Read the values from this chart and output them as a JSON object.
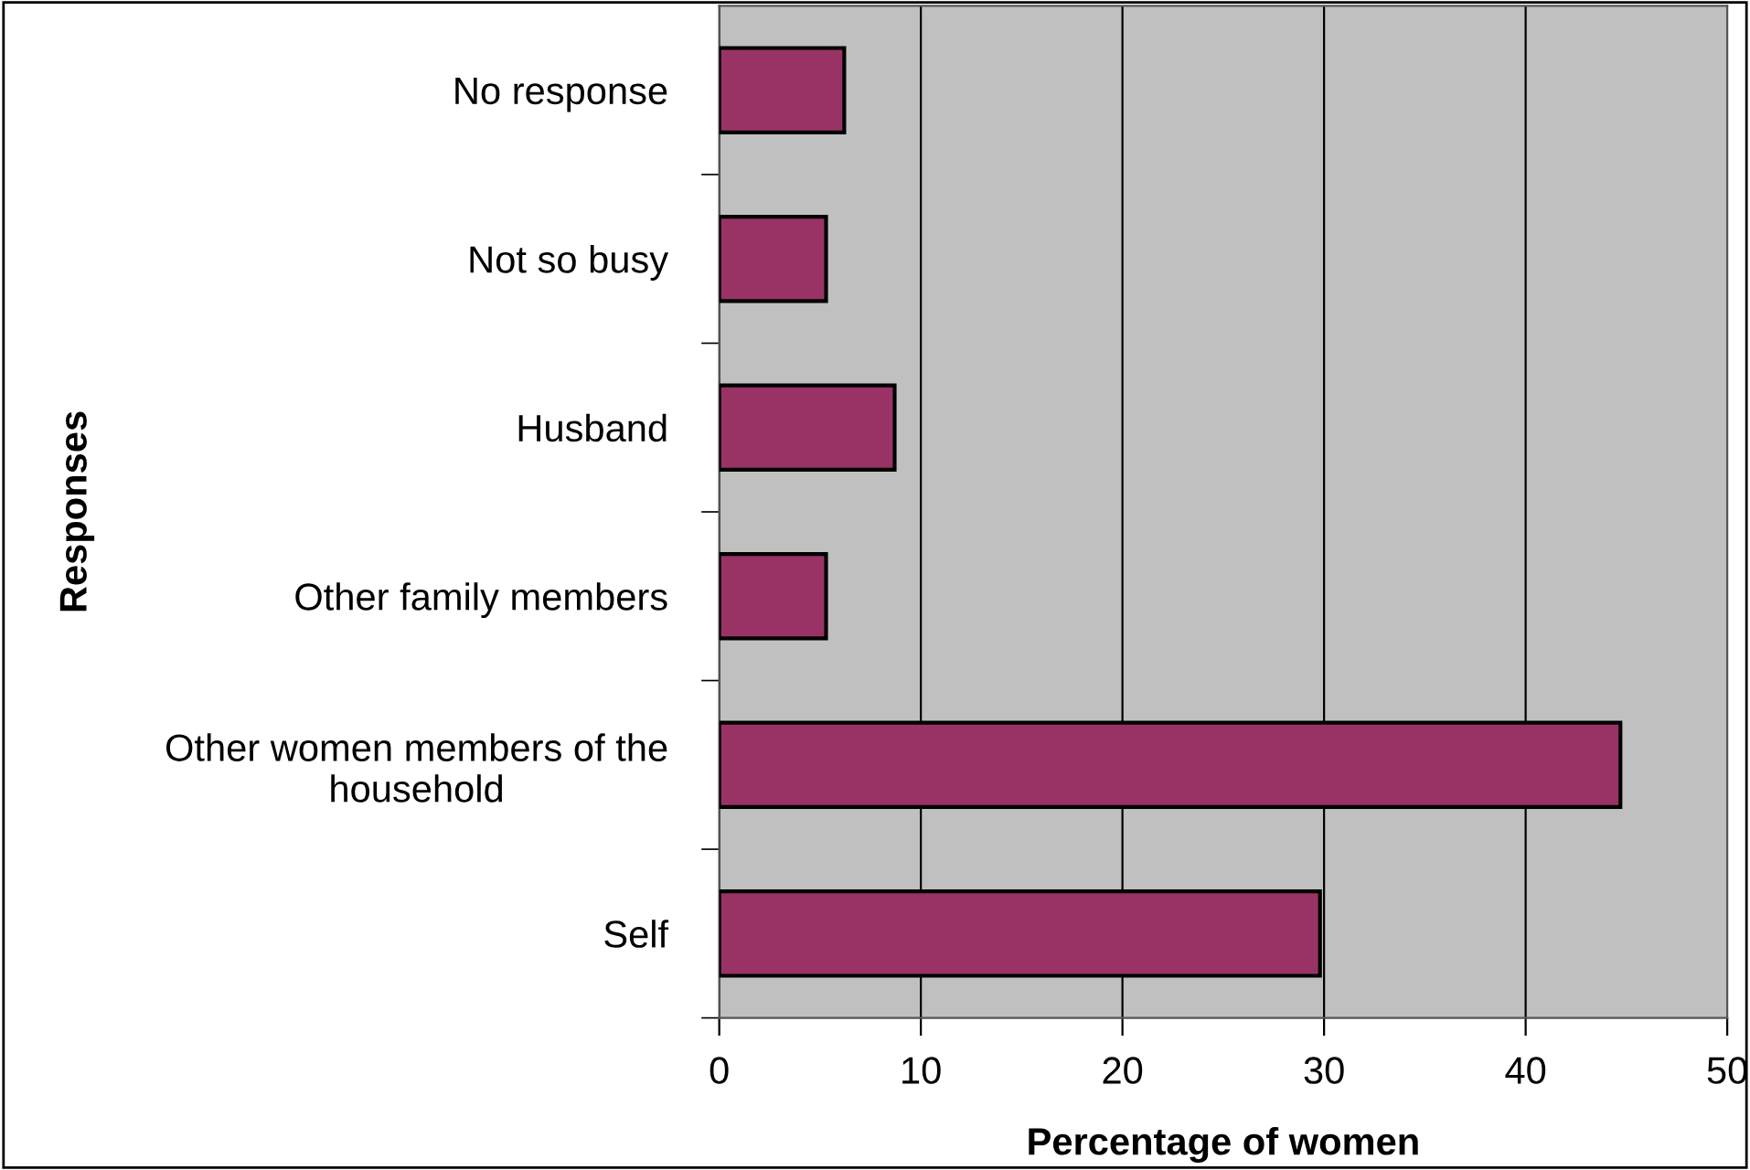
{
  "chart_data": {
    "type": "bar",
    "orientation": "horizontal",
    "xlabel": "Percentage of women",
    "ylabel": "Responses",
    "categories": [
      "No response",
      "Not so busy",
      "Husband",
      "Other family members",
      "Other women members of the\nhousehold",
      "Self"
    ],
    "values": [
      6.2,
      5.3,
      8.7,
      5.3,
      44.7,
      29.8
    ],
    "color": "#993366",
    "xlim": [
      0,
      50
    ],
    "xticks": [
      0,
      10,
      20,
      30,
      40,
      50
    ],
    "grid": "x",
    "legend": false
  }
}
